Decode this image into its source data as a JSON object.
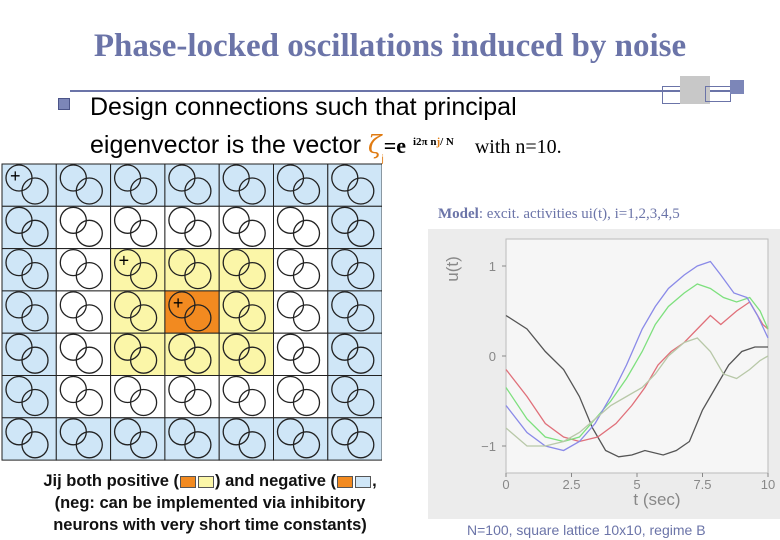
{
  "slide": {
    "title": "Phase-locked oscillations induced by noise",
    "bullet_line1": "Design connections such that principal",
    "bullet_line2": "eigenvector is the vector",
    "zeta_symbol": "ζ",
    "zeta_sub": "j",
    "formula_eq": "=e",
    "formula_exp_a": "i2π n",
    "formula_exp_j": "j",
    "formula_exp_b": "/ N",
    "formula_with": "with n=10.",
    "model_label": "Model",
    "model_text": ": excit. activities ui(t), i=1,2,3,4,5",
    "caption_line1_a": "Jij both positive (",
    "caption_line1_b": ") and negative (",
    "caption_line1_c": ",",
    "caption_line2": "(neg: can be implemented via inhibitory",
    "caption_line3": "neurons with very short time constants)",
    "footnote": "N=100, square lattice 10x10, regime B",
    "plus_sign": "+"
  },
  "colors": {
    "title": "#6b74a8",
    "cell_blue": "#cfe6f7",
    "cell_yellow": "#fbf6a8",
    "cell_orange": "#f28a20",
    "cell_white": "#ffffff"
  },
  "lattice": {
    "rows": 7,
    "cols": 7,
    "cell_types": [
      [
        "blue",
        "blue",
        "blue",
        "blue",
        "blue",
        "blue",
        "blue"
      ],
      [
        "blue",
        "white",
        "white",
        "white",
        "white",
        "white",
        "blue"
      ],
      [
        "blue",
        "white",
        "yellow",
        "yellow",
        "yellow",
        "white",
        "blue"
      ],
      [
        "blue",
        "white",
        "yellow",
        "orange",
        "yellow",
        "white",
        "blue"
      ],
      [
        "blue",
        "white",
        "yellow",
        "yellow",
        "yellow",
        "white",
        "blue"
      ],
      [
        "blue",
        "white",
        "white",
        "white",
        "white",
        "white",
        "blue"
      ],
      [
        "blue",
        "blue",
        "blue",
        "blue",
        "blue",
        "blue",
        "blue"
      ]
    ],
    "plus_cells": [
      [
        0,
        0
      ],
      [
        2,
        2
      ],
      [
        3,
        3
      ]
    ]
  },
  "chart_data": {
    "type": "line",
    "xlabel": "t (sec)",
    "ylabel": "u(t)",
    "xlim": [
      0,
      10
    ],
    "ylim": [
      -1.3,
      1.3
    ],
    "xticks": [
      "0",
      "2.5",
      "5",
      "7.5",
      "10"
    ],
    "xtick_values": [
      0,
      2.5,
      5,
      7.5,
      10
    ],
    "yticks": [
      "1",
      "0",
      "−1"
    ],
    "ytick_values": [
      1,
      0,
      -1
    ],
    "series": [
      {
        "color": "#555555",
        "points": [
          [
            0,
            0.45
          ],
          [
            0.8,
            0.3
          ],
          [
            1.5,
            0.05
          ],
          [
            2.2,
            -0.15
          ],
          [
            2.8,
            -0.45
          ],
          [
            3.3,
            -0.8
          ],
          [
            3.8,
            -1.05
          ],
          [
            4.3,
            -1.12
          ],
          [
            4.8,
            -1.1
          ],
          [
            5.3,
            -1.05
          ],
          [
            6.0,
            -1.1
          ],
          [
            6.5,
            -1.05
          ],
          [
            7.0,
            -0.95
          ],
          [
            7.5,
            -0.6
          ],
          [
            8.0,
            -0.35
          ],
          [
            8.5,
            -0.1
          ],
          [
            9.0,
            0.05
          ],
          [
            9.5,
            0.1
          ],
          [
            10.0,
            0.1
          ]
        ]
      },
      {
        "color": "#e0707a",
        "points": [
          [
            0,
            -0.15
          ],
          [
            0.8,
            -0.45
          ],
          [
            1.5,
            -0.75
          ],
          [
            2.2,
            -0.9
          ],
          [
            2.8,
            -0.95
          ],
          [
            3.5,
            -0.9
          ],
          [
            4.2,
            -0.75
          ],
          [
            4.8,
            -0.55
          ],
          [
            5.3,
            -0.35
          ],
          [
            5.8,
            -0.1
          ],
          [
            6.3,
            0.05
          ],
          [
            6.8,
            0.15
          ],
          [
            7.3,
            0.3
          ],
          [
            7.8,
            0.45
          ],
          [
            8.2,
            0.35
          ],
          [
            8.8,
            0.5
          ],
          [
            9.3,
            0.6
          ],
          [
            9.8,
            0.35
          ],
          [
            10.0,
            0.3
          ]
        ]
      },
      {
        "color": "#7ee07e",
        "points": [
          [
            0,
            -0.35
          ],
          [
            0.8,
            -0.7
          ],
          [
            1.5,
            -0.9
          ],
          [
            2.2,
            -0.95
          ],
          [
            2.8,
            -0.9
          ],
          [
            3.4,
            -0.7
          ],
          [
            4.0,
            -0.5
          ],
          [
            4.6,
            -0.25
          ],
          [
            5.2,
            0.05
          ],
          [
            5.7,
            0.35
          ],
          [
            6.2,
            0.55
          ],
          [
            6.8,
            0.7
          ],
          [
            7.3,
            0.8
          ],
          [
            7.8,
            0.75
          ],
          [
            8.3,
            0.65
          ],
          [
            8.8,
            0.6
          ],
          [
            9.3,
            0.65
          ],
          [
            9.7,
            0.5
          ],
          [
            10.0,
            0.3
          ]
        ]
      },
      {
        "color": "#8a8ae8",
        "points": [
          [
            0,
            -0.55
          ],
          [
            0.8,
            -0.85
          ],
          [
            1.5,
            -1.0
          ],
          [
            2.2,
            -1.05
          ],
          [
            2.8,
            -0.95
          ],
          [
            3.4,
            -0.75
          ],
          [
            4.0,
            -0.45
          ],
          [
            4.6,
            -0.1
          ],
          [
            5.2,
            0.3
          ],
          [
            5.7,
            0.55
          ],
          [
            6.2,
            0.75
          ],
          [
            6.8,
            0.9
          ],
          [
            7.3,
            1.0
          ],
          [
            7.8,
            1.05
          ],
          [
            8.2,
            0.9
          ],
          [
            8.7,
            0.7
          ],
          [
            9.2,
            0.65
          ],
          [
            9.6,
            0.45
          ],
          [
            10.0,
            0.2
          ]
        ]
      },
      {
        "color": "#b8c8a8",
        "points": [
          [
            0,
            -0.8
          ],
          [
            0.8,
            -1.0
          ],
          [
            1.5,
            -1.0
          ],
          [
            2.2,
            -0.95
          ],
          [
            2.8,
            -0.85
          ],
          [
            3.4,
            -0.7
          ],
          [
            4.0,
            -0.55
          ],
          [
            4.6,
            -0.45
          ],
          [
            5.2,
            -0.35
          ],
          [
            5.7,
            -0.2
          ],
          [
            6.2,
            0.0
          ],
          [
            6.8,
            0.15
          ],
          [
            7.3,
            0.2
          ],
          [
            7.8,
            0.05
          ],
          [
            8.3,
            -0.2
          ],
          [
            8.8,
            -0.25
          ],
          [
            9.3,
            -0.15
          ],
          [
            9.7,
            -0.05
          ],
          [
            10.0,
            0.0
          ]
        ]
      }
    ]
  }
}
